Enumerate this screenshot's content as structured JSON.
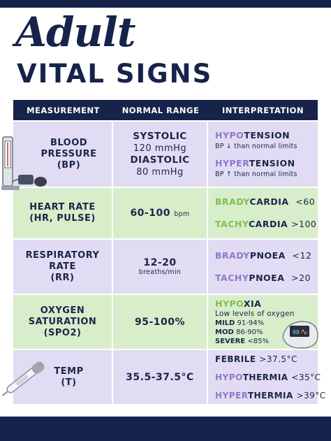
{
  "title": {
    "script": "Adult",
    "sub": "VITAL SIGNS"
  },
  "headers": [
    "MEASUREMENT",
    "NORMAL RANGE",
    "INTERPRETATION"
  ],
  "colors": {
    "navy": "#17234a",
    "purple_row": "#e1dcf3",
    "green_row": "#d8eecb",
    "purple_accent": "#8f78c9",
    "green_accent": "#7fbf4d"
  },
  "rows": [
    {
      "measurement": [
        "BLOOD",
        "PRESSURE",
        "(BP)"
      ],
      "normal": {
        "systolic_label": "SYSTOLIC",
        "systolic_value": "120 mmHg",
        "diastolic_label": "DIASTOLIC",
        "diastolic_value": "80 mmHg"
      },
      "interp": {
        "hypo_prefix": "HYPO",
        "hypo_suffix": "TENSION",
        "hypo_note": "BP ↓ than normal limits",
        "hyper_prefix": "HYPER",
        "hyper_suffix": "TENSION",
        "hyper_note": "BP ↑ than normal limits"
      },
      "icon": "blood-pressure-monitor-icon"
    },
    {
      "measurement": [
        "HEART RATE",
        "(HR, PULSE)"
      ],
      "normal": {
        "value": "60-100",
        "unit": "bpm"
      },
      "interp": {
        "a_prefix": "BRADY",
        "a_suffix": "CARDIA",
        "a_value": "<60",
        "b_prefix": "TACHY",
        "b_suffix": "CARDIA",
        "b_value": ">100"
      }
    },
    {
      "measurement": [
        "RESPIRATORY",
        "RATE",
        "(RR)"
      ],
      "normal": {
        "value": "12-20",
        "unit": "breaths/min"
      },
      "interp": {
        "a_prefix": "BRADY",
        "a_suffix": "PNOEA",
        "a_value": "<12",
        "b_prefix": "TACHY",
        "b_suffix": "PNOEA",
        "b_value": ">20"
      }
    },
    {
      "measurement": [
        "OXYGEN",
        "SATURATION",
        "(SPO2)"
      ],
      "normal": {
        "value": "95-100%"
      },
      "interp": {
        "prefix": "HYPO",
        "suffix": "XIA",
        "desc": "Low levels of oxygen",
        "mild_label": "MILD",
        "mild_value": "91-94%",
        "mod_label": "MOD",
        "mod_value": "86-90%",
        "severe_label": "SEVERE",
        "severe_value": "<85%"
      },
      "icon": "pulse-oximeter-icon"
    },
    {
      "measurement": [
        "TEMP",
        "(T)"
      ],
      "normal": {
        "value": "35.5-37.5°C"
      },
      "interp": {
        "febrile_label": "FEBRILE",
        "febrile_value": ">37.5°C",
        "hypo_prefix": "HYPO",
        "hypo_suffix": "THERMIA",
        "hypo_value": "<35°C",
        "hyper_prefix": "HYPER",
        "hyper_suffix": "THERMIA",
        "hyper_value": ">39°C"
      },
      "icon": "thermometer-icon"
    }
  ]
}
